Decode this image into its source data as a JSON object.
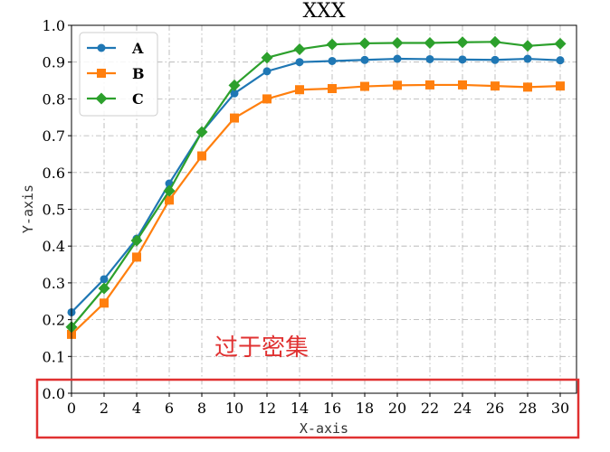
{
  "chart_data": {
    "type": "line",
    "title": "XXX",
    "xlabel": "X-axis",
    "ylabel": "Y-axis",
    "xlim": [
      0,
      31
    ],
    "ylim": [
      0,
      1.0
    ],
    "xticks": [
      0,
      2,
      4,
      6,
      8,
      10,
      12,
      14,
      16,
      18,
      20,
      22,
      24,
      26,
      28,
      30
    ],
    "yticks": [
      0.0,
      0.1,
      0.2,
      0.3,
      0.4,
      0.5,
      0.6,
      0.7,
      0.8,
      0.9,
      1.0
    ],
    "grid": true,
    "legend_position": "top-left",
    "x": [
      0,
      2,
      4,
      6,
      8,
      10,
      12,
      14,
      16,
      18,
      20,
      22,
      24,
      26,
      28,
      30
    ],
    "series": [
      {
        "name": "A",
        "color": "#1f77b4",
        "marker": "circle",
        "values": [
          0.22,
          0.31,
          0.42,
          0.57,
          0.71,
          0.815,
          0.875,
          0.9,
          0.903,
          0.906,
          0.909,
          0.908,
          0.907,
          0.906,
          0.909,
          0.905
        ]
      },
      {
        "name": "B",
        "color": "#ff7f0e",
        "marker": "square",
        "values": [
          0.16,
          0.245,
          0.37,
          0.525,
          0.645,
          0.748,
          0.8,
          0.825,
          0.828,
          0.834,
          0.837,
          0.838,
          0.838,
          0.835,
          0.832,
          0.835
        ]
      },
      {
        "name": "C",
        "color": "#2ca02c",
        "marker": "diamond",
        "values": [
          0.18,
          0.285,
          0.415,
          0.55,
          0.71,
          0.837,
          0.912,
          0.935,
          0.948,
          0.951,
          0.952,
          0.952,
          0.954,
          0.955,
          0.944,
          0.95
        ]
      }
    ]
  },
  "annotation": {
    "text": "过于密集",
    "color": "#e03131"
  },
  "highlight_box_color": "#e03131"
}
